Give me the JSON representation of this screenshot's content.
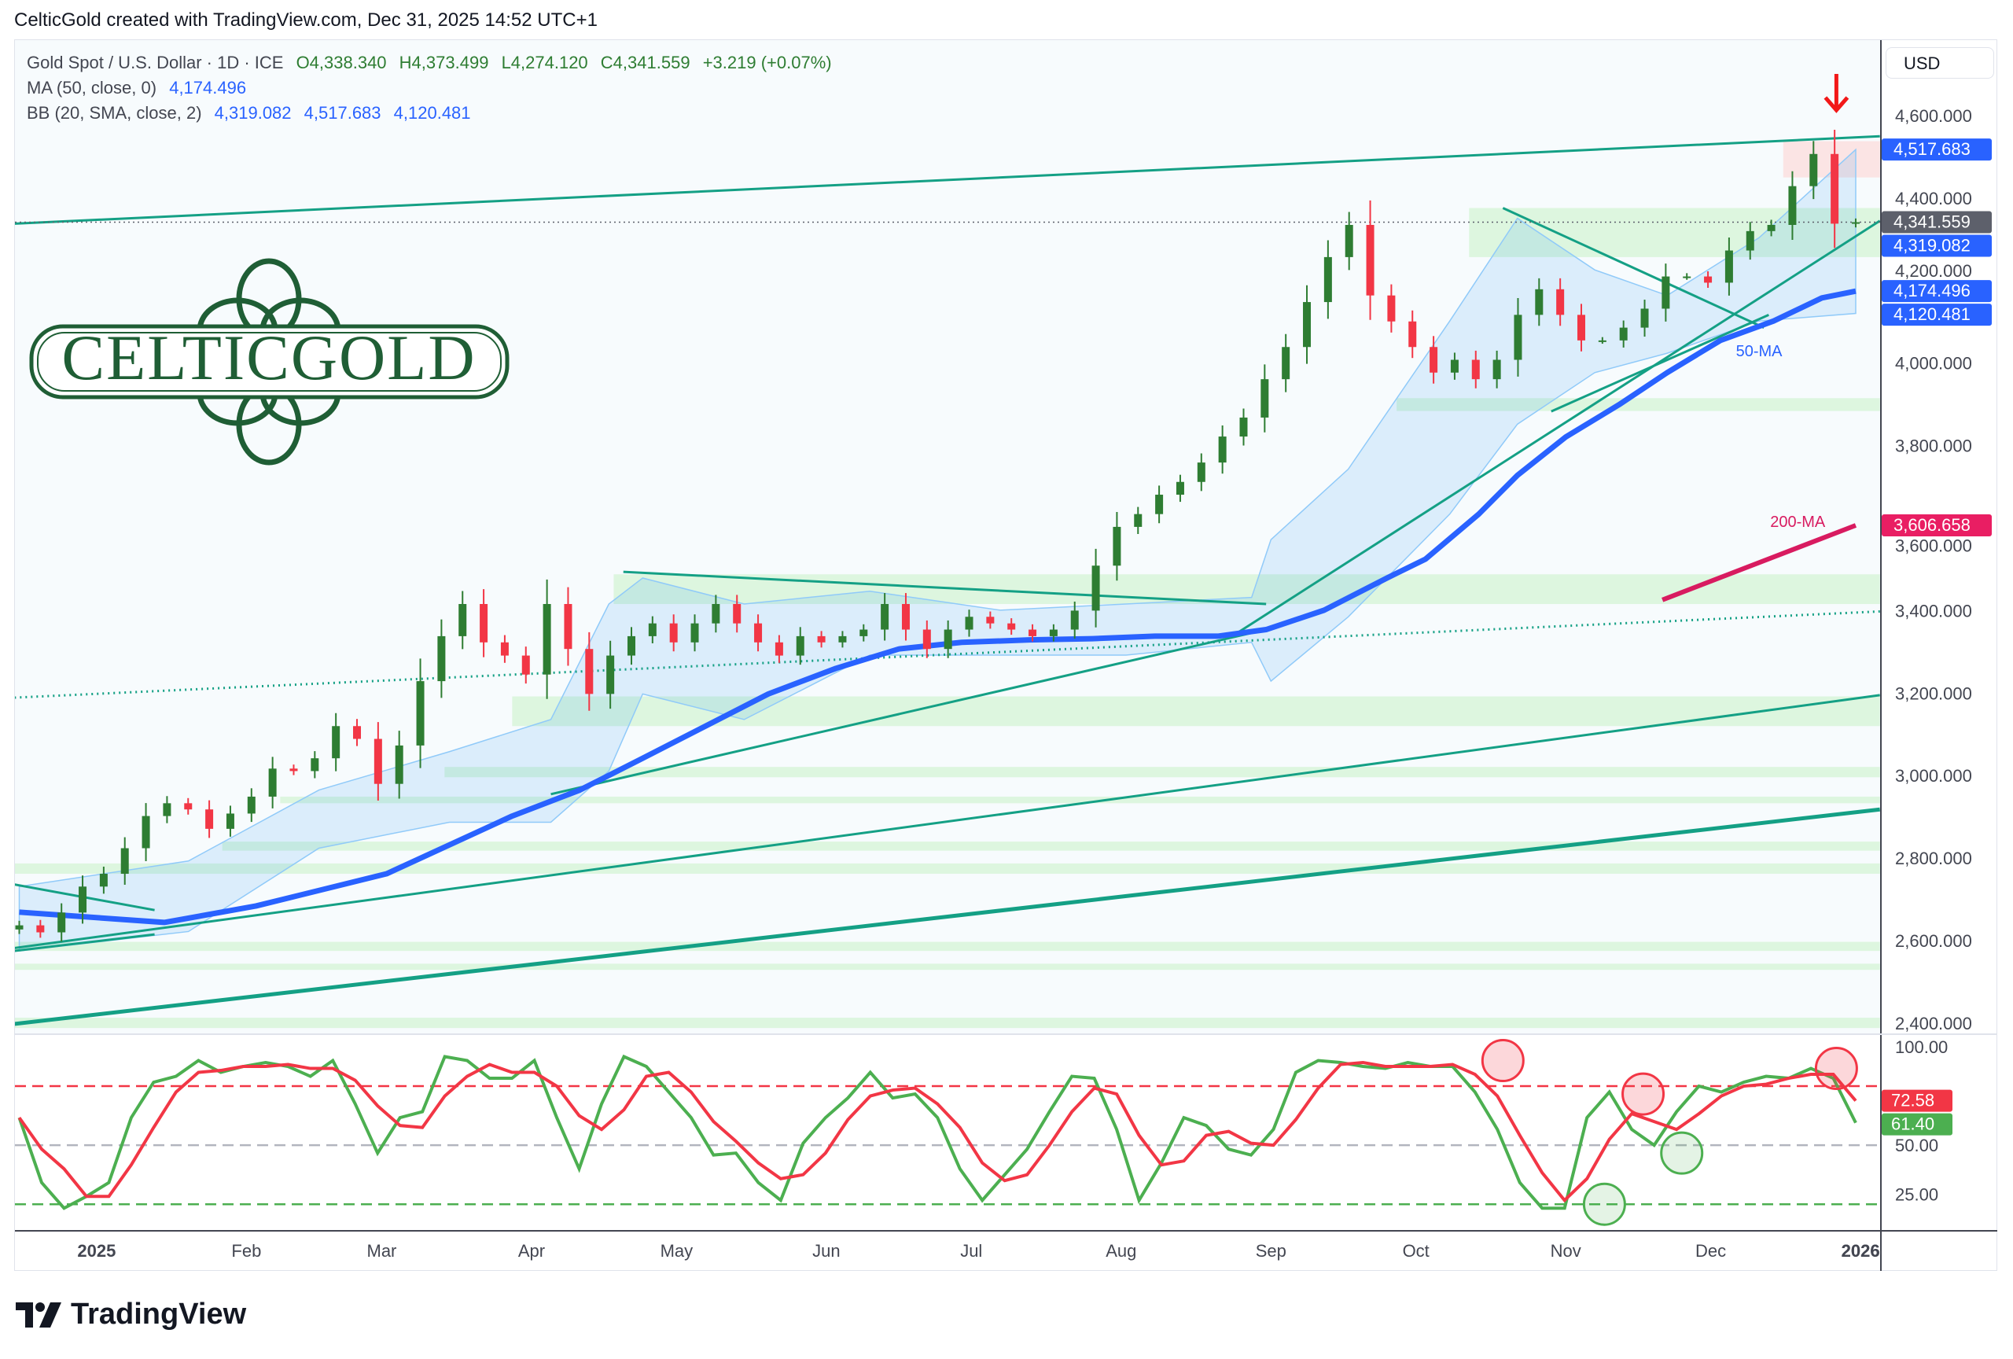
{
  "credit": "CelticGold created with TradingView.com, Dec 31, 2025 14:52 UTC+1",
  "legend": {
    "symbol": "Gold Spot / U.S. Dollar · 1D · ICE",
    "open": "O4,338.340",
    "high": "H4,373.499",
    "low": "L4,274.120",
    "close": "C4,341.559",
    "change": "+3.219 (+0.07%)",
    "ma_label": "MA (50, close, 0)",
    "ma_value": "4,174.496",
    "bb_label": "BB (20, SMA, close, 2)",
    "bb_basis": "4,319.082",
    "bb_upper": "4,517.683",
    "bb_lower": "4,120.481"
  },
  "currency": "USD",
  "logo_text": "CELTICGOLD",
  "footer_brand": "TradingView",
  "colors": {
    "up": "#2e7d32",
    "down": "#f23645",
    "ma50": "#2962ff",
    "ma200": "#d81b60",
    "trend": "#14a085",
    "zone": "#d9f5dc",
    "zone_red": "#fbe1e1",
    "bb_fill": "#2196f3",
    "k": "#4caf50",
    "d": "#f23645"
  },
  "chart_data": [
    {
      "type": "candlestick",
      "x_range": [
        "2024-12-16",
        "2025-12-31"
      ],
      "ylim": [
        2400,
        4600
      ],
      "yticks": [
        "4,600.000",
        "4,400.000",
        "4,200.000",
        "4,000.000",
        "3,800.000",
        "3,600.000",
        "3,400.000",
        "3,200.000",
        "3,000.000",
        "2,800.000",
        "2,600.000",
        "2,400.000"
      ],
      "ytick_values": [
        4600,
        4400,
        4200,
        4000,
        3800,
        3600,
        3400,
        3200,
        3000,
        2800,
        2600,
        2400
      ],
      "closes": [
        2637,
        2620,
        2668,
        2731,
        2762,
        2824,
        2902,
        2933,
        2918,
        2871,
        2908,
        2949,
        3017,
        3011,
        3042,
        3120,
        3089,
        2980,
        3073,
        3229,
        3338,
        3416,
        3323,
        3291,
        3245,
        3416,
        3307,
        3198,
        3291,
        3338,
        3369,
        3323,
        3369,
        3416,
        3369,
        3323,
        3291,
        3338,
        3323,
        3338,
        3354,
        3416,
        3354,
        3307,
        3354,
        3385,
        3369,
        3354,
        3338,
        3354,
        3400,
        3509,
        3603,
        3634,
        3681,
        3712,
        3759,
        3822,
        3868,
        3961,
        4039,
        4148,
        4257,
        4335,
        4164,
        4101,
        4039,
        3977,
        4008,
        3961,
        4008,
        4117,
        4179,
        4117,
        4055,
        4055,
        4086,
        4132,
        4210,
        4210,
        4195,
        4273,
        4320,
        4335,
        4429,
        4507,
        4338,
        4341.559
      ],
      "ma50": {
        "label": "50-MA",
        "label_at": [
          "2025-12-11",
          4017
        ],
        "points": [
          [
            "2024-12-16",
            2669
          ],
          [
            "2025-01-15",
            2644
          ],
          [
            "2025-02-03",
            2684
          ],
          [
            "2025-03-02",
            2762
          ],
          [
            "2025-03-28",
            2902
          ],
          [
            "2025-04-11",
            2965
          ],
          [
            "2025-04-24",
            3042
          ],
          [
            "2025-05-07",
            3120
          ],
          [
            "2025-05-20",
            3198
          ],
          [
            "2025-06-03",
            3260
          ],
          [
            "2025-06-16",
            3307
          ],
          [
            "2025-06-29",
            3323
          ],
          [
            "2025-07-13",
            3329
          ],
          [
            "2025-07-26",
            3332
          ],
          [
            "2025-08-08",
            3338
          ],
          [
            "2025-08-21",
            3338
          ],
          [
            "2025-08-31",
            3354
          ],
          [
            "2025-09-12",
            3401
          ],
          [
            "2025-09-25",
            3479
          ],
          [
            "2025-10-03",
            3525
          ],
          [
            "2025-10-14",
            3634
          ],
          [
            "2025-10-22",
            3728
          ],
          [
            "2025-11-01",
            3821
          ],
          [
            "2025-11-12",
            3899
          ],
          [
            "2025-11-22",
            3977
          ],
          [
            "2025-12-03",
            4055
          ],
          [
            "2025-12-14",
            4102
          ],
          [
            "2025-12-24",
            4158
          ],
          [
            "2025-12-31",
            4174.496
          ]
        ]
      },
      "ma200": {
        "label": "200-MA",
        "label_at": [
          "2025-12-19",
          3603
        ],
        "points": [
          [
            "2025-11-21",
            3426
          ],
          [
            "2025-12-31",
            3606.658
          ]
        ]
      },
      "bb": {
        "dates": [
          "2024-12-16",
          "2025-01-20",
          "2025-02-16",
          "2025-03-15",
          "2025-04-05",
          "2025-04-17",
          "2025-04-24",
          "2025-05-15",
          "2025-06-10",
          "2025-07-07",
          "2025-08-02",
          "2025-08-28",
          "2025-09-01",
          "2025-09-17",
          "2025-10-08",
          "2025-10-22",
          "2025-11-07",
          "2025-11-22",
          "2025-12-11",
          "2025-12-31"
        ],
        "upper": [
          2731,
          2793,
          2965,
          3058,
          3136,
          3416,
          3479,
          3416,
          3447,
          3401,
          3416,
          3432,
          3572,
          3743,
          4102,
          4351,
          4226,
          4164,
          4304,
          4517.683
        ],
        "lower": [
          2575,
          2622,
          2824,
          2887,
          2887,
          3011,
          3198,
          3136,
          3292,
          3292,
          3292,
          3323,
          3229,
          3385,
          3634,
          3852,
          3977,
          4024,
          4102,
          4120.481
        ]
      },
      "zones": [
        {
          "from": "2025-04-18",
          "to": "2026-01-05",
          "low": 3416,
          "high": 3488,
          "color": "green"
        },
        {
          "from": "2025-03-28",
          "to": "2026-01-05",
          "low": 3120,
          "high": 3192,
          "color": "green"
        },
        {
          "from": "2025-03-14",
          "to": "2026-01-05",
          "low": 2996,
          "high": 3021,
          "color": "green"
        },
        {
          "from": "2025-02-08",
          "to": "2026-01-05",
          "low": 2933,
          "high": 2949,
          "color": "green"
        },
        {
          "from": "2025-01-27",
          "to": "2026-01-05",
          "low": 2818,
          "high": 2840,
          "color": "green"
        },
        {
          "from": "2024-12-15",
          "to": "2026-01-05",
          "low": 2762,
          "high": 2787,
          "color": "green"
        },
        {
          "from": "2024-12-15",
          "to": "2026-01-05",
          "low": 2575,
          "high": 2597,
          "color": "green"
        },
        {
          "from": "2024-12-15",
          "to": "2026-01-05",
          "low": 2529,
          "high": 2544,
          "color": "green"
        },
        {
          "from": "2024-12-15",
          "to": "2026-01-05",
          "low": 2388,
          "high": 2413,
          "color": "green"
        },
        {
          "from": "2025-10-12",
          "to": "2026-01-05",
          "low": 4257,
          "high": 4376,
          "color": "green"
        },
        {
          "from": "2025-09-27",
          "to": "2026-01-05",
          "low": 3884,
          "high": 3915,
          "color": "green"
        },
        {
          "from": "2025-12-16",
          "to": "2026-01-05",
          "low": 4450,
          "high": 4538,
          "color": "red"
        }
      ],
      "trendlines": [
        {
          "p1": [
            "2024-12-15",
            4338
          ],
          "p2": [
            "2026-01-05",
            4550
          ],
          "style": "solid"
        },
        {
          "p1": [
            "2024-12-15",
            2398
          ],
          "p2": [
            "2026-01-05",
            2918
          ],
          "style": "thick"
        },
        {
          "p1": [
            "2024-12-15",
            2582
          ],
          "p2": [
            "2026-01-05",
            3195
          ],
          "style": "solid"
        },
        {
          "p1": [
            "2024-12-15",
            3189
          ],
          "p2": [
            "2026-01-05",
            3398
          ],
          "style": "dotted"
        },
        {
          "p1": [
            "2025-04-05",
            2955
          ],
          "p2": [
            "2025-08-31",
            3354
          ],
          "style": "solid"
        },
        {
          "p1": [
            "2025-08-24",
            3338
          ],
          "p2": [
            "2026-01-05",
            4345
          ],
          "style": "solid"
        },
        {
          "p1": [
            "2025-04-20",
            3494
          ],
          "p2": [
            "2025-08-31",
            3416
          ],
          "style": "solid"
        },
        {
          "p1": [
            "2025-10-19",
            4376
          ],
          "p2": [
            "2025-12-12",
            4086
          ],
          "style": "solid"
        },
        {
          "p1": [
            "2025-10-29",
            3883
          ],
          "p2": [
            "2025-12-13",
            4117
          ],
          "style": "solid"
        },
        {
          "p1": [
            "2024-12-15",
            2736
          ],
          "p2": [
            "2025-01-13",
            2674
          ],
          "style": "solid"
        },
        {
          "p1": [
            "2024-12-15",
            2575
          ],
          "p2": [
            "2025-01-13",
            2615
          ],
          "style": "solid"
        }
      ],
      "last_price": 4341.559,
      "signal_arrow": [
        "2025-12-27",
        4640
      ],
      "price_labels": [
        {
          "text": "4,517.683",
          "value": 4517.683,
          "color": "#2962ff"
        },
        {
          "text": "4,341.559",
          "value": 4341.559,
          "color": "#5d606b"
        },
        {
          "text": "4,319.082",
          "value": 4319.082,
          "color": "#2962ff"
        },
        {
          "text": "4,174.496",
          "value": 4174.496,
          "color": "#2962ff"
        },
        {
          "text": "4,120.481",
          "value": 4120.481,
          "color": "#2962ff"
        },
        {
          "text": "3,606.658",
          "value": 3606.658,
          "color": "#e91e63"
        }
      ],
      "xticks": [
        {
          "label": "2025",
          "date": "2025-01-01",
          "bold": true
        },
        {
          "label": "Feb",
          "date": "2025-02-01"
        },
        {
          "label": "Mar",
          "date": "2025-03-01"
        },
        {
          "label": "Apr",
          "date": "2025-04-01"
        },
        {
          "label": "May",
          "date": "2025-05-01"
        },
        {
          "label": "Jun",
          "date": "2025-06-01"
        },
        {
          "label": "Jul",
          "date": "2025-07-01"
        },
        {
          "label": "Aug",
          "date": "2025-08-01"
        },
        {
          "label": "Sep",
          "date": "2025-09-01"
        },
        {
          "label": "Oct",
          "date": "2025-10-01"
        },
        {
          "label": "Nov",
          "date": "2025-11-01"
        },
        {
          "label": "Dec",
          "date": "2025-12-01"
        },
        {
          "label": "2026",
          "date": "2026-01-01",
          "bold": true
        }
      ]
    },
    {
      "type": "line",
      "ylim": [
        0,
        100
      ],
      "yticks": [
        "100.00",
        "50.00",
        "25.00"
      ],
      "ytick_values": [
        100,
        50,
        25
      ],
      "levels": [
        {
          "value": 80,
          "color": "#f23645"
        },
        {
          "value": 50,
          "color": "#b2b5be"
        },
        {
          "value": 20,
          "color": "#4caf50"
        }
      ],
      "k": [
        64,
        31,
        18,
        24,
        31,
        64,
        82,
        85,
        93,
        87,
        90,
        92,
        90,
        85,
        93,
        71,
        46,
        64,
        67,
        95,
        93,
        84,
        84,
        93,
        64,
        38,
        71,
        95,
        90,
        77,
        64,
        45,
        46,
        31,
        22,
        51,
        64,
        74,
        87,
        74,
        76,
        64,
        38,
        22,
        35,
        48,
        67,
        85,
        84,
        58,
        22,
        41,
        64,
        60,
        48,
        45,
        58,
        87,
        93,
        92,
        90,
        89,
        92,
        90,
        90,
        77,
        58,
        31,
        18,
        18,
        64,
        77,
        58,
        50,
        67,
        80,
        77,
        82,
        85,
        84,
        89,
        84,
        61.4
      ],
      "d": [
        64,
        48,
        38,
        24,
        24,
        40,
        59,
        77,
        87,
        88,
        90,
        90,
        91,
        89,
        89,
        83,
        70,
        60,
        59,
        75,
        85,
        91,
        87,
        87,
        80,
        65,
        58,
        68,
        85,
        87,
        77,
        62,
        52,
        41,
        33,
        35,
        46,
        63,
        75,
        78,
        79,
        71,
        59,
        41,
        32,
        35,
        50,
        67,
        79,
        76,
        55,
        40,
        42,
        55,
        57,
        51,
        50,
        63,
        79,
        91,
        92,
        90,
        90,
        90,
        91,
        86,
        75,
        55,
        36,
        22,
        33,
        53,
        66,
        62,
        58,
        66,
        75,
        80,
        81,
        84,
        86,
        86,
        72.58
      ],
      "value_labels": [
        {
          "text": "72.58",
          "value": 72.58,
          "color": "#f23645"
        },
        {
          "text": "61.40",
          "value": 61.4,
          "color": "#4caf50"
        }
      ],
      "markers": [
        {
          "date": "2025-10-19",
          "value": 93,
          "color": "red"
        },
        {
          "date": "2025-11-17",
          "value": 76,
          "color": "red"
        },
        {
          "date": "2025-12-27",
          "value": 89,
          "color": "red"
        },
        {
          "date": "2025-11-09",
          "value": 20,
          "color": "green"
        },
        {
          "date": "2025-11-25",
          "value": 46,
          "color": "green"
        }
      ]
    }
  ]
}
